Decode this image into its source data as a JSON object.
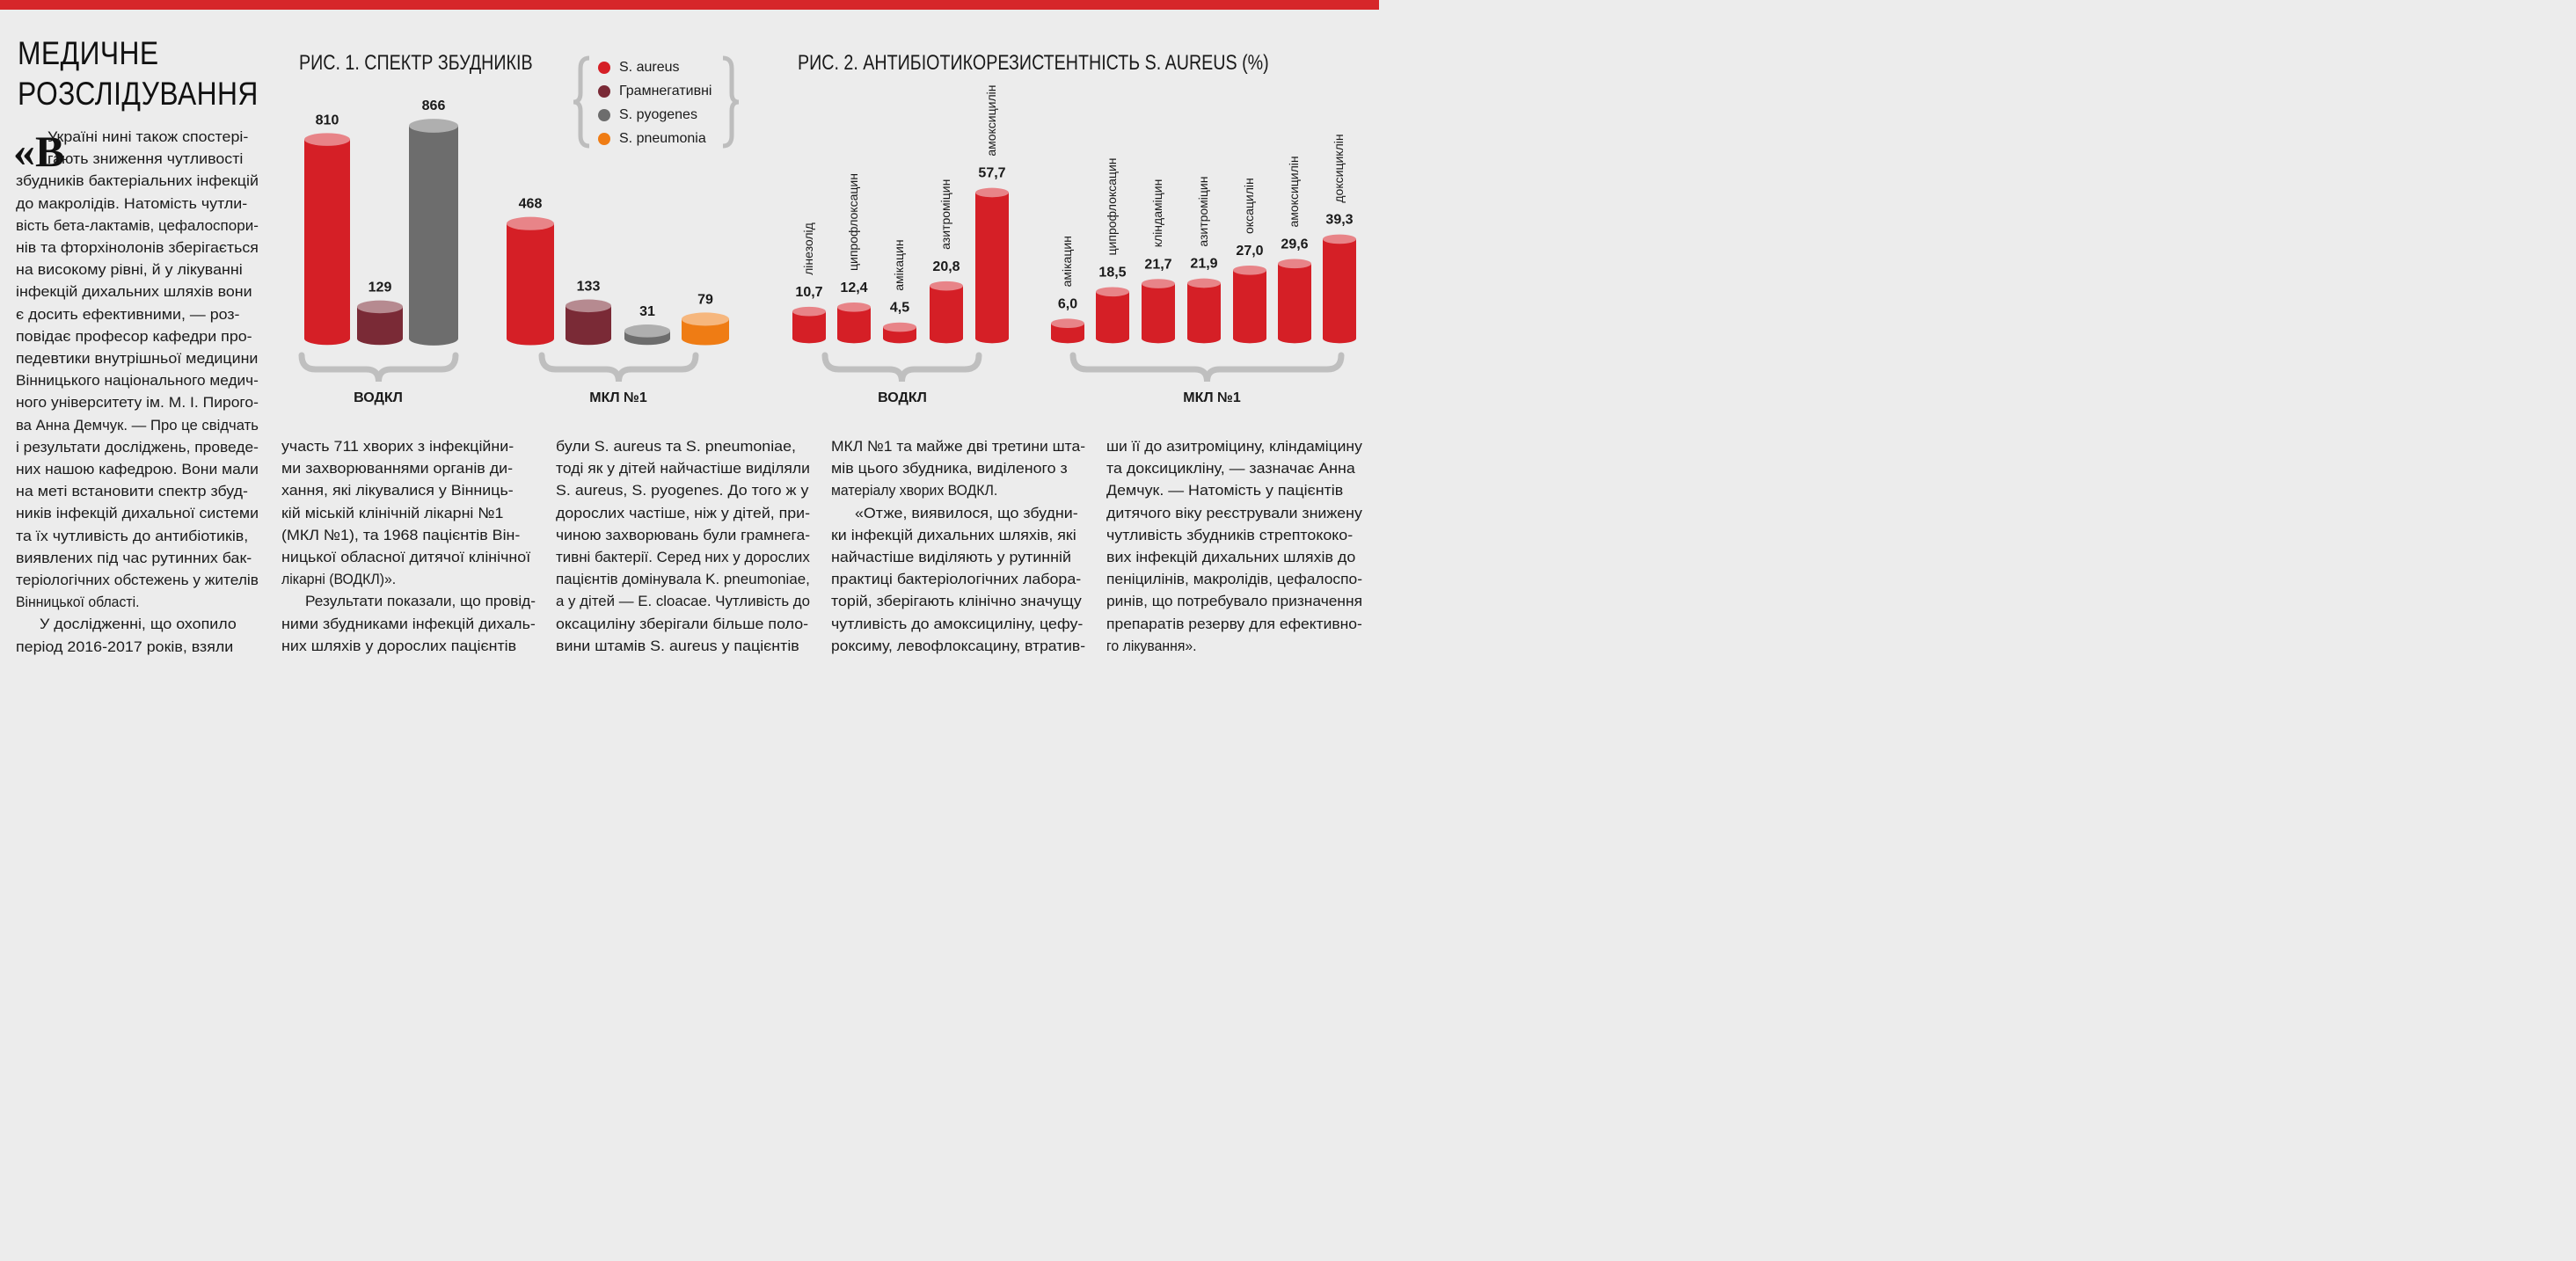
{
  "section_title_lines": [
    "МЕДИЧНЕ",
    "РОЗСЛІДУВАННЯ"
  ],
  "dropcap_quote": "«В",
  "colors": {
    "accent_red": "#d6262a",
    "s_aureus": "#d51f26",
    "gram_negative": "#7a2a36",
    "s_pyogenes": "#6d6d6d",
    "s_pneumonia": "#ef7c14"
  },
  "fig1": {
    "title": "РИС. 1. СПЕКТР ЗБУДНИКІВ",
    "legend": [
      {
        "label": "S. aureus",
        "color": "#d51f26"
      },
      {
        "label": "Грамнегативні",
        "color": "#7a2a36"
      },
      {
        "label": "S. pyogenes",
        "color": "#6d6d6d"
      },
      {
        "label": "S. pneumonia",
        "color": "#ef7c14"
      }
    ]
  },
  "fig2": {
    "title": "РИС. 2. АНТИБІОТИКОРЕЗИСТЕНТНІСТЬ S. AUREUS (%)"
  },
  "chart_data": [
    {
      "type": "bar",
      "title": "РИС. 1. СПЕКТР ЗБУДНИКІВ",
      "groups": [
        "ВОДКЛ",
        "МКЛ №1"
      ],
      "series": [
        {
          "name": "S. aureus",
          "values": [
            810,
            468
          ],
          "labels": [
            "810",
            "468"
          ]
        },
        {
          "name": "Грамнегативні",
          "values": [
            129,
            133
          ],
          "labels": [
            "129",
            "133"
          ]
        },
        {
          "name": "S. pyogenes",
          "values": [
            866,
            31
          ],
          "labels": [
            "866",
            "31"
          ]
        },
        {
          "name": "S. pneumonia",
          "values": [
            null,
            79
          ],
          "labels": [
            "",
            "79"
          ]
        }
      ],
      "ylim": [
        0,
        866
      ]
    },
    {
      "type": "bar",
      "title": "РИС. 2. АНТИБІОТИКОРЕЗИСТЕНТНІСТЬ S. AUREUS (%)",
      "groups": [
        {
          "name": "ВОДКЛ",
          "categories": [
            "лінезолід",
            "ципрофлоксацин",
            "амікацин",
            "азитроміцин",
            "амоксицилін"
          ],
          "values": [
            10.7,
            12.4,
            4.5,
            20.8,
            57.7
          ],
          "labels": [
            "10,7",
            "12,4",
            "4,5",
            "20,8",
            "57,7"
          ]
        },
        {
          "name": "МКЛ №1",
          "categories": [
            "амікацин",
            "ципрофлоксацин",
            "кліндаміцин",
            "азитроміцин",
            "оксацилін",
            "амоксицилін",
            "доксициклін"
          ],
          "values": [
            6.0,
            18.5,
            21.7,
            21.9,
            27.0,
            29.6,
            39.3
          ],
          "labels": [
            "6,0",
            "18,5",
            "21,7",
            "21,9",
            "27,0",
            "29,6",
            "39,3"
          ]
        }
      ],
      "ylim": [
        0,
        57.7
      ]
    }
  ],
  "columns": [
    [
      "Україні нині також спостері-",
      "гають зниження чутливості",
      "збудників бактеріальних інфекцій",
      "до макролідів. Натомість чутли-",
      "вість бета-лактамів, цефалоспори-",
      "нів та фторхінолонів зберігається",
      "на високому рівні, й у лікуванні",
      "інфекцій дихальних шляхів вони",
      "є досить ефективними, — роз-",
      "повідає професор кафедри про-",
      "педевтики внутрішньої медицини",
      "Вінницького національного медич-",
      "ного університету ім. М. І. Пирого-",
      "ва Анна Демчук. — Про це свідчать",
      "і результати досліджень, проведе-",
      "них нашою кафедрою. Вони мали",
      "на меті встановити спектр збуд-",
      "ників інфекцій дихальної системи",
      "та їх чутливість до антибіотиків,",
      "виявлених під час рутинних бак-",
      "теріологічних обстежень у жителів",
      "Вінницької області.",
      "У дослідженні, що охопило",
      "період 2016-2017 років, взяли"
    ],
    [
      "участь 711 хворих з інфекційни-",
      "ми захворюваннями органів ди-",
      "хання, які лікувалися у Вінниць-",
      "кій міській клінічній лікарні №1",
      "(МКЛ №1), та 1968 пацієнтів Він-",
      "ницької обласної дитячої клінічної",
      "лікарні (ВОДКЛ)».",
      "Результати показали, що провід-",
      "ними збудниками інфекцій дихаль-",
      "них шляхів у дорослих пацієнтів"
    ],
    [
      "були S. aureus та S. pneumoniae,",
      "тоді як у дітей найчастіше виділяли",
      "S. aureus, S. pyogenes. До того ж у",
      "дорослих частіше, ніж у дітей, при-",
      "чиною захворювань були грамнега-",
      "тивні бактерії. Серед них у дорослих",
      "пацієнтів домінувала K. pneumoniae,",
      "а у дітей — E. cloacae. Чутливість до",
      "оксациліну зберігали більше поло-",
      "вини штамів S. aureus у пацієнтів"
    ],
    [
      "МКЛ №1 та майже дві третини шта-",
      "мів цього збудника, виділеного з",
      "матеріалу хворих ВОДКЛ.",
      "«Отже, виявилося, що збудни-",
      "ки інфекцій дихальних шляхів, які",
      "найчастіше виділяють у рутинній",
      "практиці бактеріологічних лабора-",
      "торій, зберігають клінічно значущу",
      "чутливість до амоксициліну, цефу-",
      "роксиму, левофлоксацину, втратив-"
    ],
    [
      "ши її до азитроміцину, кліндаміцину",
      "та доксицикліну, — зазначає Анна",
      "Демчук. — Натомість у пацієнтів",
      "дитячого віку реєстрували знижену",
      "чутливість збудників стрептококо-",
      "вих інфекцій дихальних шляхів до",
      "пеніцилінів, макролідів, цефалоспо-",
      "ринів, що потребувало призначення",
      "препаратів резерву для ефективно-",
      "го лікування»."
    ]
  ]
}
